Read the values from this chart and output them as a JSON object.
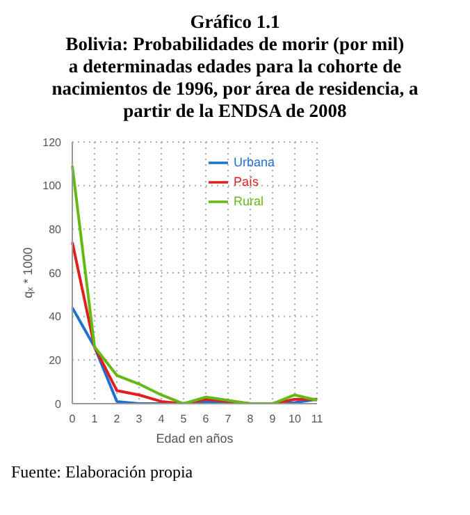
{
  "chart_data": {
    "type": "line",
    "title": "Gráfico 1.1\nBolivia: Probabilidades de morir (por mil)\na determinadas edades para la cohorte de\nnacimientos de 1996, por área de residencia, a\npartir de la ENDSA de 2008",
    "xlabel": "Edad en años",
    "ylabel": "qₓ * 1000",
    "annotations": [
      "Fuente: Elaboración propia"
    ],
    "categories": [
      "0",
      "1",
      "2",
      "3",
      "4",
      "5",
      "6",
      "7",
      "8",
      "9",
      "10",
      "11"
    ],
    "series": [
      {
        "name": "Urbana",
        "color": "#1f6fd0",
        "values": [
          44,
          26,
          1,
          0,
          0,
          0,
          1,
          0.5,
          0,
          0,
          0.5,
          2
        ]
      },
      {
        "name": "País",
        "color": "#e02020",
        "values": [
          74,
          26,
          6,
          4,
          1,
          0,
          2,
          1,
          0,
          0,
          2,
          2
        ]
      },
      {
        "name": "Rural",
        "color": "#66b814",
        "values": [
          109,
          26,
          13,
          9,
          4,
          0,
          3,
          1.5,
          0,
          0,
          4,
          1.5
        ]
      }
    ],
    "ylim": [
      0,
      120
    ],
    "yticks": [
      0,
      20,
      40,
      60,
      80,
      100,
      120
    ],
    "grid": true,
    "legend": "top right",
    "marker": "none",
    "line_style": "solid"
  }
}
